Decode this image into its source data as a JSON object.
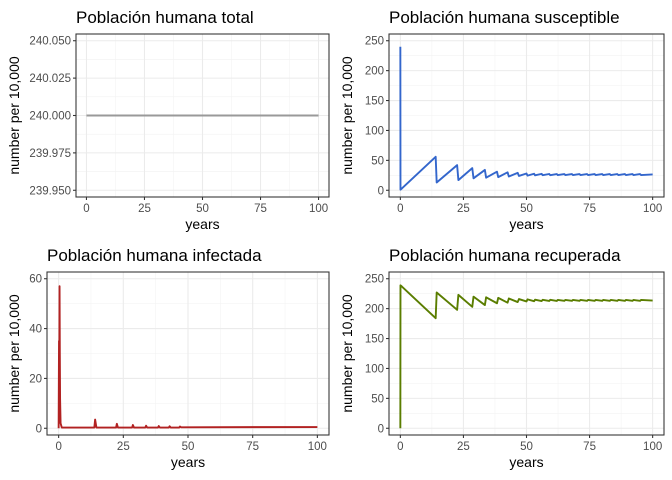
{
  "chart_data": [
    {
      "type": "line",
      "title": "Población humana total",
      "xlabel": "years",
      "ylabel": "number per 10,000",
      "xlim": [
        0,
        100
      ],
      "ylim": [
        239.95,
        240.05
      ],
      "xticks": [
        0,
        25,
        50,
        75,
        100
      ],
      "xtick_labels": [
        "0",
        "25",
        "50",
        "75",
        "100"
      ],
      "yticks": [
        239.95,
        239.975,
        240.0,
        240.025,
        240.05
      ],
      "ytick_labels": [
        "239.950",
        "239.975",
        "240.000",
        "240.025",
        "240.050"
      ],
      "color": "#999999",
      "series": [
        {
          "name": "total",
          "x": [
            0,
            100
          ],
          "y": [
            240,
            240
          ]
        }
      ]
    },
    {
      "type": "line",
      "title": "Población humana susceptible",
      "xlabel": "years",
      "ylabel": "number per 10,000",
      "xlim": [
        0,
        100
      ],
      "ylim": [
        0,
        250
      ],
      "xticks": [
        0,
        25,
        50,
        75,
        100
      ],
      "xtick_labels": [
        "0",
        "25",
        "50",
        "75",
        "100"
      ],
      "yticks": [
        0,
        50,
        100,
        150,
        200,
        250
      ],
      "ytick_labels": [
        "0",
        "50",
        "100",
        "150",
        "200",
        "250"
      ],
      "color": "#3366cc",
      "series": [
        {
          "name": "susceptible",
          "x": [
            0,
            0.05,
            0.6,
            14.0,
            14.4,
            22.5,
            23.0,
            28.5,
            29.0,
            33.5,
            34.0,
            38.3,
            38.8,
            42.5,
            43.0,
            46.5,
            47.0,
            50.0,
            50.4,
            53.0,
            53.4,
            56.0,
            56.4,
            59.0,
            59.4,
            62.0,
            62.4,
            65.0,
            65.4,
            68.0,
            68.4,
            71.0,
            71.4,
            74.0,
            74.4,
            77.0,
            77.4,
            80.0,
            80.4,
            83.0,
            83.4,
            86.0,
            86.4,
            89.0,
            89.4,
            92.0,
            92.4,
            95.0,
            95.4,
            100.0
          ],
          "y": [
            240,
            1,
            3,
            56,
            13,
            42,
            17,
            37,
            20,
            34,
            21,
            31,
            22,
            30,
            23,
            29,
            24,
            28,
            24.5,
            27.6,
            25,
            27.4,
            25.2,
            27.2,
            25.3,
            27.1,
            25.4,
            27,
            25.5,
            27,
            25.5,
            27,
            25.5,
            27,
            25.5,
            27,
            25.5,
            27,
            25.5,
            27,
            25.5,
            27,
            25.5,
            27,
            25.5,
            27,
            25.5,
            27,
            25.5,
            26.5
          ]
        }
      ]
    },
    {
      "type": "line",
      "title": "Población humana infectada",
      "xlabel": "years",
      "ylabel": "number per 10,000",
      "xlim": [
        0,
        100
      ],
      "ylim": [
        0,
        60
      ],
      "xticks": [
        0,
        25,
        50,
        75,
        100
      ],
      "xtick_labels": [
        "0",
        "25",
        "50",
        "75",
        "100"
      ],
      "yticks": [
        0,
        20,
        40,
        60
      ],
      "ytick_labels": [
        "0",
        "20",
        "40",
        "60"
      ],
      "color": "#b22222",
      "series": [
        {
          "name": "infectada",
          "x": [
            0,
            0.15,
            0.25,
            0.35,
            0.45,
            0.55,
            0.75,
            1.2,
            13.8,
            14.1,
            14.6,
            22.2,
            22.5,
            22.9,
            28.4,
            28.7,
            29.1,
            33.5,
            33.8,
            34.2,
            38.4,
            38.7,
            39.1,
            42.6,
            42.9,
            43.3,
            46.6,
            46.9,
            47.3,
            100
          ],
          "y": [
            0,
            35,
            20,
            57,
            30,
            12,
            2,
            0.3,
            0.3,
            3.5,
            0.3,
            0.3,
            1.8,
            0.3,
            0.3,
            1.3,
            0.3,
            0.3,
            1.0,
            0.3,
            0.3,
            0.9,
            0.3,
            0.3,
            0.8,
            0.3,
            0.3,
            0.7,
            0.4,
            0.5
          ]
        }
      ]
    },
    {
      "type": "line",
      "title": "Población humana recuperada",
      "xlabel": "years",
      "ylabel": "number per 10,000",
      "xlim": [
        0,
        100
      ],
      "ylim": [
        0,
        250
      ],
      "xticks": [
        0,
        25,
        50,
        75,
        100
      ],
      "xtick_labels": [
        "0",
        "25",
        "50",
        "75",
        "100"
      ],
      "yticks": [
        0,
        50,
        100,
        150,
        200,
        250
      ],
      "ytick_labels": [
        "0",
        "50",
        "100",
        "150",
        "200",
        "250"
      ],
      "color": "#5a7d00",
      "series": [
        {
          "name": "recuperada",
          "x": [
            0,
            0.05,
            0.6,
            14.0,
            14.4,
            22.5,
            23.0,
            28.5,
            29.0,
            33.5,
            34.0,
            38.3,
            38.8,
            42.5,
            43.0,
            46.5,
            47.0,
            50.0,
            50.4,
            53.0,
            53.4,
            56.0,
            56.4,
            59.0,
            59.4,
            62.0,
            62.4,
            65.0,
            65.4,
            68.0,
            68.4,
            71.0,
            71.4,
            74.0,
            74.4,
            77.0,
            77.4,
            80.0,
            80.4,
            83.0,
            83.4,
            86.0,
            86.4,
            89.0,
            89.4,
            92.0,
            92.4,
            95.0,
            95.4,
            100.0
          ],
          "y": [
            0,
            239,
            237,
            184,
            227,
            198,
            223,
            203,
            220,
            206,
            219,
            209,
            218,
            210,
            217,
            211,
            216,
            212,
            215.5,
            212.4,
            215,
            212.6,
            214.8,
            212.8,
            214.7,
            212.9,
            214.6,
            213,
            214.5,
            213,
            214.5,
            213,
            214.5,
            213,
            214.5,
            213,
            214.5,
            213,
            214.5,
            213,
            214.5,
            213,
            214.5,
            213,
            214.5,
            213,
            214.5,
            213,
            214.5,
            213.5
          ]
        }
      ]
    }
  ]
}
